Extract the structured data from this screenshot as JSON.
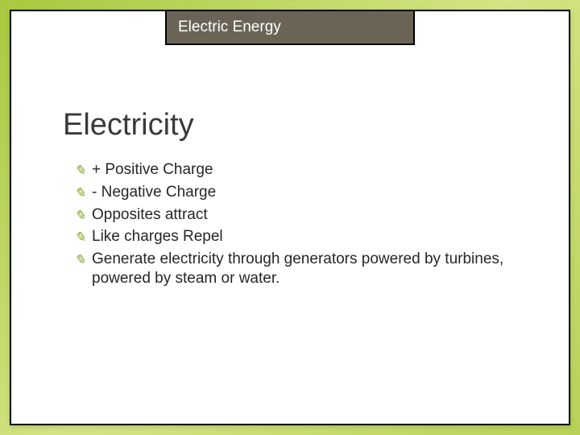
{
  "header": {
    "label": "Electric Energy",
    "background_color": "#6b6456",
    "text_color": "#ffffff",
    "header_fontsize": 19
  },
  "title": {
    "text": "Electricity",
    "fontsize": 38,
    "color": "#3a3a3a"
  },
  "bullets": {
    "items": [
      "+ Positive Charge",
      "- Negative Charge",
      "Opposites attract",
      "Like charges Repel",
      "Generate electricity through generators powered by turbines, powered by steam or water."
    ],
    "fontsize": 19,
    "text_color": "#262626",
    "bullet_glyph_color": "#7ca61e"
  },
  "slide": {
    "background_color": "#ffffff",
    "border_color": "#000000",
    "outer_gradient_start": "#a8c93f",
    "outer_gradient_mid": "#d4e485",
    "outer_gradient_end": "#b8d157"
  }
}
